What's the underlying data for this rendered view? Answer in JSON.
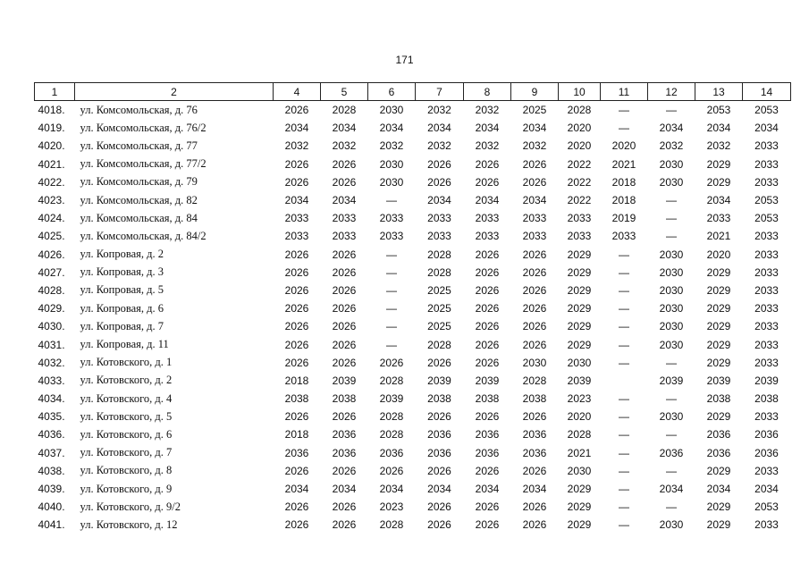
{
  "page_number": "171",
  "table": {
    "header": [
      "1",
      "2",
      "4",
      "5",
      "6",
      "7",
      "8",
      "9",
      "10",
      "11",
      "12",
      "13",
      "14"
    ],
    "rows": [
      [
        "4018.",
        "ул. Комсомольская, д. 76",
        2026,
        2028,
        2030,
        2032,
        2032,
        2025,
        2028,
        "—",
        "—",
        2053,
        2053
      ],
      [
        "4019.",
        "ул. Комсомольская, д. 76/2",
        2034,
        2034,
        2034,
        2034,
        2034,
        2034,
        2020,
        "—",
        2034,
        2034,
        2034
      ],
      [
        "4020.",
        "ул. Комсомольская, д. 77",
        2032,
        2032,
        2032,
        2032,
        2032,
        2032,
        2020,
        2020,
        2032,
        2032,
        2033
      ],
      [
        "4021.",
        "ул. Комсомольская, д. 77/2",
        2026,
        2026,
        2030,
        2026,
        2026,
        2026,
        2022,
        2021,
        2030,
        2029,
        2033
      ],
      [
        "4022.",
        "ул. Комсомольская, д. 79",
        2026,
        2026,
        2030,
        2026,
        2026,
        2026,
        2022,
        2018,
        2030,
        2029,
        2033
      ],
      [
        "4023.",
        "ул. Комсомольская, д. 82",
        2034,
        2034,
        "—",
        2034,
        2034,
        2034,
        2022,
        2018,
        "—",
        2034,
        2053
      ],
      [
        "4024.",
        "ул. Комсомольская, д. 84",
        2033,
        2033,
        2033,
        2033,
        2033,
        2033,
        2033,
        2019,
        "—",
        2033,
        2053
      ],
      [
        "4025.",
        "ул. Комсомольская, д. 84/2",
        2033,
        2033,
        2033,
        2033,
        2033,
        2033,
        2033,
        2033,
        "—",
        2021,
        2033
      ],
      [
        "4026.",
        "ул. Копровая, д. 2",
        2026,
        2026,
        "—",
        2028,
        2026,
        2026,
        2029,
        "—",
        2030,
        2020,
        2033
      ],
      [
        "4027.",
        "ул. Копровая, д. 3",
        2026,
        2026,
        "—",
        2028,
        2026,
        2026,
        2029,
        "—",
        2030,
        2029,
        2033
      ],
      [
        "4028.",
        "ул. Копровая, д. 5",
        2026,
        2026,
        "—",
        2025,
        2026,
        2026,
        2029,
        "—",
        2030,
        2029,
        2033
      ],
      [
        "4029.",
        "ул. Копровая, д. 6",
        2026,
        2026,
        "—",
        2025,
        2026,
        2026,
        2029,
        "—",
        2030,
        2029,
        2033
      ],
      [
        "4030.",
        "ул. Копровая, д. 7",
        2026,
        2026,
        "—",
        2025,
        2026,
        2026,
        2029,
        "—",
        2030,
        2029,
        2033
      ],
      [
        "4031.",
        "ул. Копровая, д. 11",
        2026,
        2026,
        "—",
        2028,
        2026,
        2026,
        2029,
        "—",
        2030,
        2029,
        2033
      ],
      [
        "4032.",
        "ул. Котовского, д. 1",
        2026,
        2026,
        2026,
        2026,
        2026,
        2030,
        2030,
        "—",
        "—",
        2029,
        2033
      ],
      [
        "4033.",
        "ул. Котовского, д. 2",
        2018,
        2039,
        2028,
        2039,
        2039,
        2028,
        2039,
        null,
        2039,
        2039,
        2039
      ],
      [
        "4034.",
        "ул. Котовского, д. 4",
        2038,
        2038,
        2039,
        2038,
        2038,
        2038,
        2023,
        "—",
        "—",
        2038,
        2038
      ],
      [
        "4035.",
        "ул. Котовского, д. 5",
        2026,
        2026,
        2028,
        2026,
        2026,
        2026,
        2020,
        "—",
        2030,
        2029,
        2033
      ],
      [
        "4036.",
        "ул. Котовского, д. 6",
        2018,
        2036,
        2028,
        2036,
        2036,
        2036,
        2028,
        "—",
        "—",
        2036,
        2036
      ],
      [
        "4037.",
        "ул. Котовского, д. 7",
        2036,
        2036,
        2036,
        2036,
        2036,
        2036,
        2021,
        "—",
        2036,
        2036,
        2036
      ],
      [
        "4038.",
        "ул. Котовского, д. 8",
        2026,
        2026,
        2026,
        2026,
        2026,
        2026,
        2030,
        "—",
        "—",
        2029,
        2033
      ],
      [
        "4039.",
        "ул. Котовского, д. 9",
        2034,
        2034,
        2034,
        2034,
        2034,
        2034,
        2029,
        "—",
        2034,
        2034,
        2034
      ],
      [
        "4040.",
        "ул. Котовского, д. 9/2",
        2026,
        2026,
        2023,
        2026,
        2026,
        2026,
        2029,
        "—",
        "—",
        2029,
        2053
      ],
      [
        "4041.",
        "ул. Котовского, д. 12",
        2026,
        2026,
        2028,
        2026,
        2026,
        2026,
        2029,
        "—",
        2030,
        2029,
        2033
      ]
    ]
  }
}
